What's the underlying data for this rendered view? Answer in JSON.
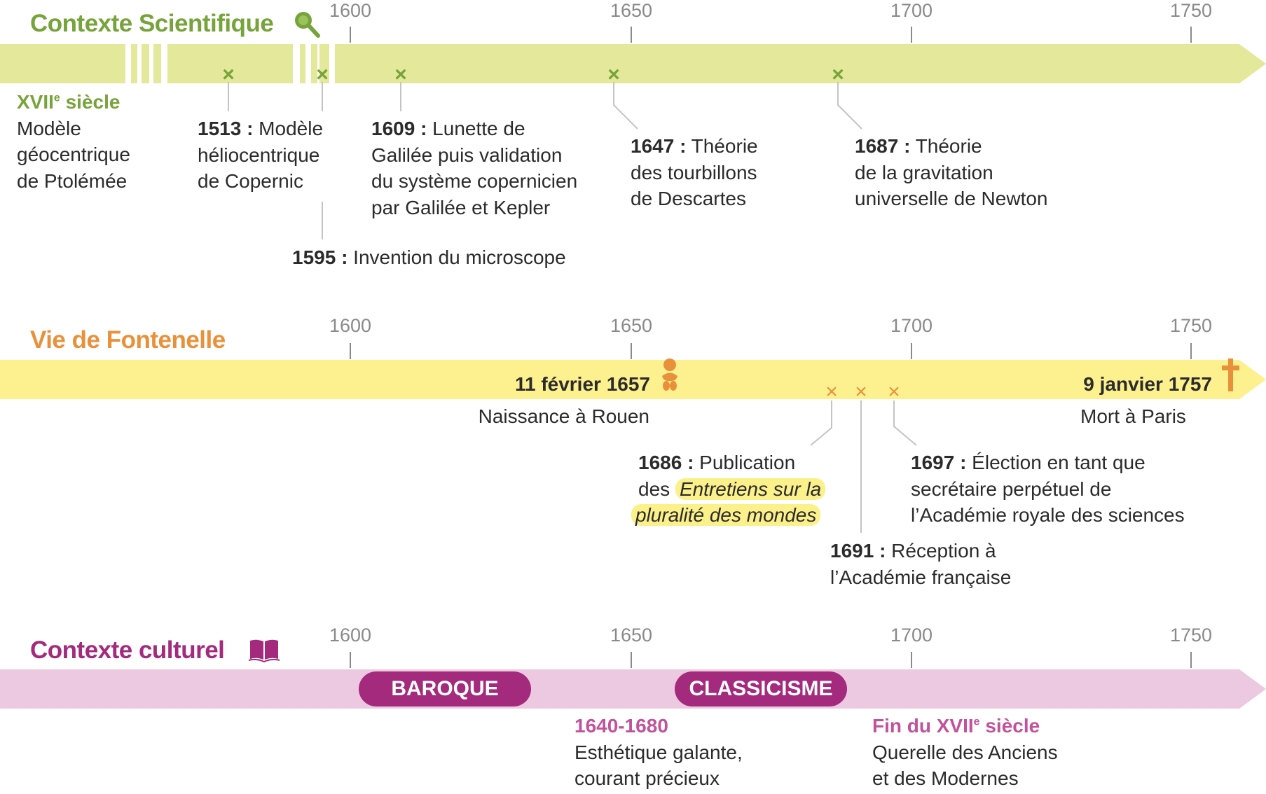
{
  "colors": {
    "science": "#76a33a",
    "science_bar": "#e3e89a",
    "life": "#e9913a",
    "life_bar": "#fdf18f",
    "culture": "#a32a7d",
    "culture_bar": "#ecc9e0",
    "culture_date": "#c2529c"
  },
  "axis_years": [
    "1600",
    "1650",
    "1700",
    "1750"
  ],
  "science": {
    "title": "Contexte Scientifique",
    "icon": "magnifier-icon",
    "century": {
      "main": "XVII",
      "sup": "e",
      "rest": " siècle",
      "lines": [
        "Modèle",
        "géocentrique",
        "de Ptolémée"
      ]
    },
    "events": [
      {
        "year": "1513 :",
        "lines": [
          " Modèle",
          "héliocentrique",
          "de Copernic"
        ]
      },
      {
        "year": "1595 :",
        "lines": [
          " Invention du microscope"
        ]
      },
      {
        "year": "1609 :",
        "lines": [
          " Lunette de",
          "Galilée puis validation",
          "du système copernicien",
          "par Galilée et Kepler"
        ]
      },
      {
        "year": "1647 :",
        "lines": [
          " Théorie",
          "des tourbillons",
          "de Descartes"
        ]
      },
      {
        "year": "1687 :",
        "lines": [
          " Théorie",
          "de la gravitation",
          "universelle de Newton"
        ]
      }
    ]
  },
  "life": {
    "title": "Vie de Fontenelle",
    "birth": {
      "date": "11 février 1657",
      "label": "Naissance à Rouen",
      "icon": "baby-icon"
    },
    "death": {
      "date": "9 janvier 1757",
      "label": "Mort à Paris",
      "icon": "cross-icon"
    },
    "events": [
      {
        "year": "1686 :",
        "pre": " Publication",
        "line2_pre": "des ",
        "italic1": "Entretiens sur la",
        "italic2": "pluralité des mondes"
      },
      {
        "year": "1691 :",
        "lines": [
          " Réception à",
          "l’Académie française"
        ]
      },
      {
        "year": "1697 :",
        "lines": [
          " Élection en tant que",
          "secrétaire perpétuel de",
          "l’Académie royale des sciences"
        ]
      }
    ]
  },
  "culture": {
    "title": "Contexte culturel",
    "icon": "book-icon",
    "periods": [
      "BAROQUE",
      "CLASSICISME"
    ],
    "notes": [
      {
        "date": "1640-1680",
        "lines": [
          "Esthétique galante,",
          "courant précieux"
        ]
      },
      {
        "date_main": "Fin du XVII",
        "date_sup": "e",
        "date_rest": " siècle",
        "lines": [
          "Querelle des Anciens",
          "et des Modernes"
        ]
      }
    ]
  }
}
